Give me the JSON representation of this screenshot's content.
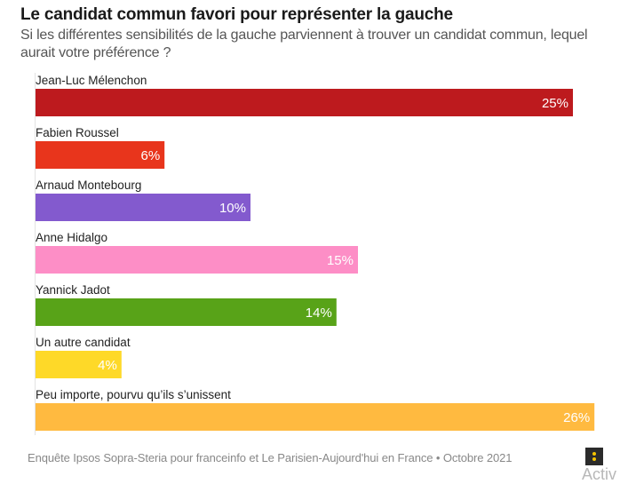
{
  "chart_data": {
    "type": "bar",
    "orientation": "horizontal",
    "title": "Le candidat commun favori pour représenter la gauche",
    "subtitle": "Si les différentes sensibilités de la gauche parviennent à trouver un candidat commun, lequel aurait votre préférence ?",
    "xlabel": "",
    "ylabel": "",
    "xlim": [
      0,
      26
    ],
    "unit": "%",
    "grid": false,
    "categories": [
      "Jean-Luc Mélenchon",
      "Fabien Roussel",
      "Arnaud Montebourg",
      "Anne Hidalgo",
      "Yannick Jadot",
      "Un autre candidat",
      "Peu importe, pourvu qu’ils s’unissent"
    ],
    "values": [
      25,
      6,
      10,
      15,
      14,
      4,
      26
    ],
    "data_labels": [
      "25%",
      "6%",
      "10%",
      "15%",
      "14%",
      "4%",
      "26%"
    ],
    "colors": [
      "#bd1a1e",
      "#e8351c",
      "#835ace",
      "#fd8ec6",
      "#58a318",
      "#fed928",
      "#ffba40"
    ],
    "source": "Enquête Ipsos Sopra-Steria pour franceinfo et Le Parisien-Aujourd'hui en France • Octobre 2021"
  },
  "overlay": {
    "menu_icon": "vertical-dots-icon",
    "watermark_text": "Activ"
  }
}
